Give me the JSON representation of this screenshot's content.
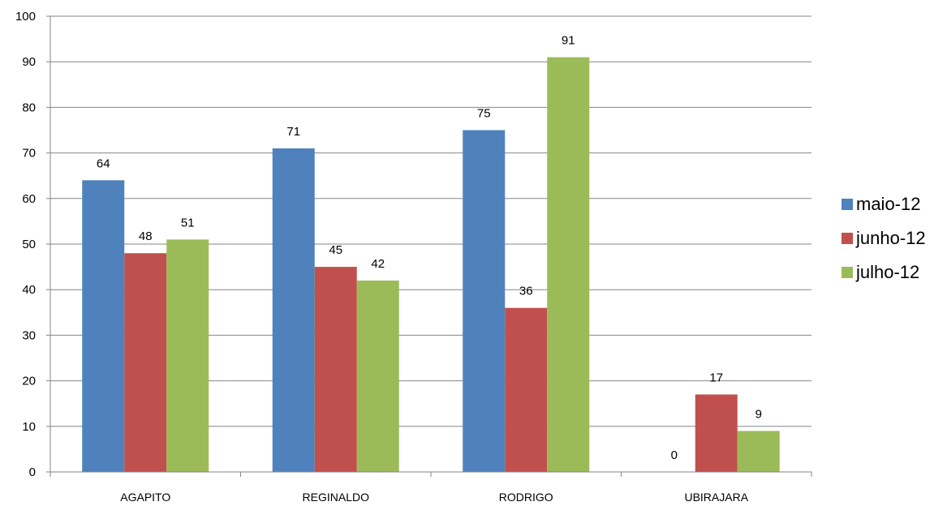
{
  "chart_data": {
    "type": "bar",
    "title": "",
    "xlabel": "",
    "ylabel": "",
    "categories": [
      "AGAPITO",
      "REGINALDO",
      "RODRIGO",
      "UBIRAJARA"
    ],
    "series": [
      {
        "name": "maio-12",
        "color": "#4F81BD",
        "values": [
          64,
          71,
          75,
          0
        ]
      },
      {
        "name": "junho-12",
        "color": "#C0504D",
        "values": [
          48,
          45,
          36,
          17
        ]
      },
      {
        "name": "julho-12",
        "color": "#9BBB59",
        "values": [
          51,
          42,
          91,
          9
        ]
      }
    ],
    "ylim": [
      0,
      100
    ],
    "yticks": [
      0,
      10,
      20,
      30,
      40,
      50,
      60,
      70,
      80,
      90,
      100
    ],
    "grid": true,
    "data_labels": true,
    "legend_position": "right"
  }
}
